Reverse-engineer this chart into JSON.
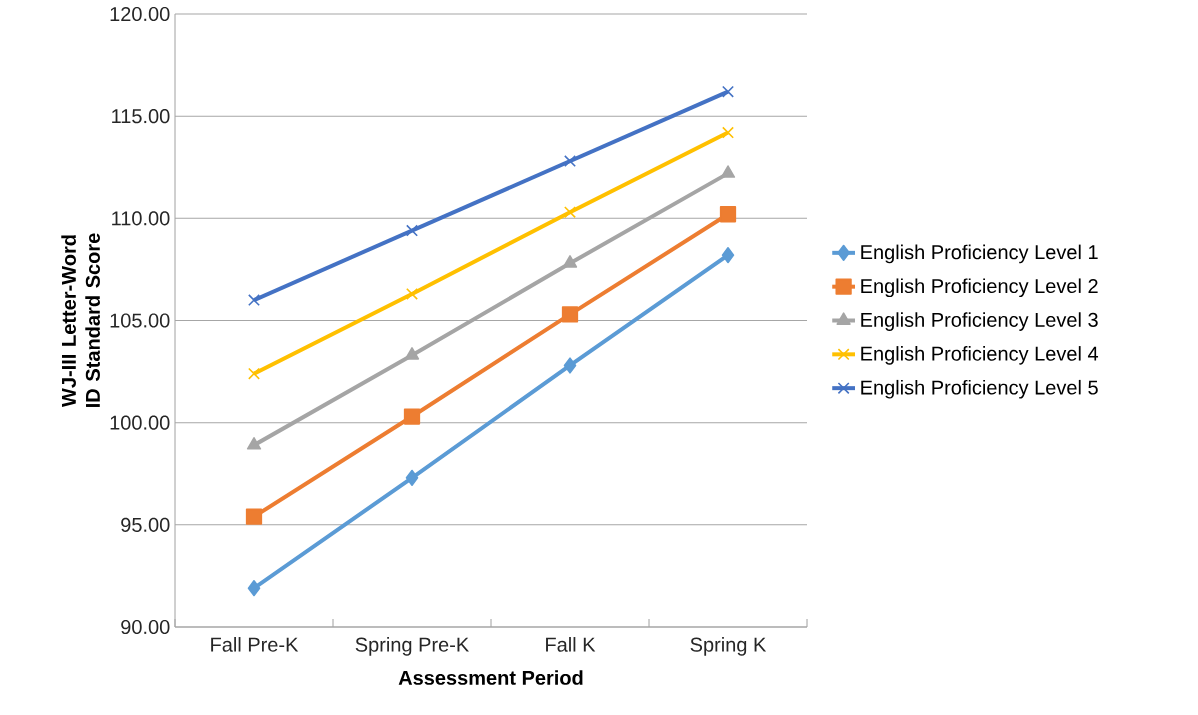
{
  "chart_data": {
    "type": "line",
    "xlabel": "Assessment Period",
    "ylabel": "WJ-III Letter-Word ID Standard Score",
    "categories": [
      "Fall Pre-K",
      "Spring Pre-K",
      "Fall K",
      "Spring K"
    ],
    "series": [
      {
        "name": "English Proficiency Level 1",
        "color": "#5b9bd5",
        "marker": "diamond",
        "values": [
          91.9,
          97.3,
          102.8,
          108.2
        ]
      },
      {
        "name": "English Proficiency Level 2",
        "color": "#ed7d31",
        "marker": "square",
        "values": [
          95.4,
          100.3,
          105.3,
          110.2
        ]
      },
      {
        "name": "English Proficiency Level 3",
        "color": "#a5a5a5",
        "marker": "triangle",
        "values": [
          98.9,
          103.3,
          107.8,
          112.2
        ]
      },
      {
        "name": "English Proficiency Level 4",
        "color": "#ffc000",
        "marker": "cross",
        "values": [
          102.4,
          106.3,
          110.3,
          114.2
        ]
      },
      {
        "name": "English Proficiency Level 5",
        "color": "#4472c4",
        "marker": "cross",
        "values": [
          106.0,
          109.4,
          112.8,
          116.2
        ]
      }
    ],
    "ylim": [
      90,
      120
    ],
    "yticks": [
      {
        "value": 90,
        "label": "90.00"
      },
      {
        "value": 95,
        "label": "95.00"
      },
      {
        "value": 100,
        "label": "100.00"
      },
      {
        "value": 105,
        "label": "105.00"
      },
      {
        "value": 110,
        "label": "110.00"
      },
      {
        "value": 115,
        "label": "115.00"
      },
      {
        "value": 120,
        "label": "120.00"
      }
    ],
    "grid": "y",
    "legend": "right",
    "line_style": "solid"
  }
}
